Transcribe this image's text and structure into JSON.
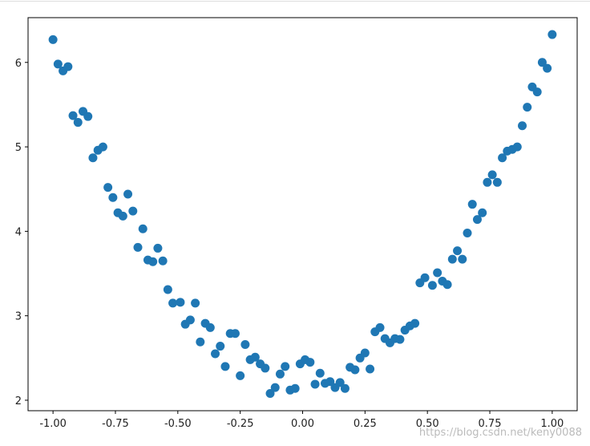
{
  "chart_data": {
    "type": "scatter",
    "x": [
      -1,
      -0.98,
      -0.96,
      -0.94,
      -0.92,
      -0.9,
      -0.88,
      -0.86,
      -0.84,
      -0.82,
      -0.8,
      -0.78,
      -0.76,
      -0.74,
      -0.72,
      -0.7,
      -0.68,
      -0.66,
      -0.64,
      -0.62,
      -0.6,
      -0.58,
      -0.56,
      -0.54,
      -0.52,
      -0.49,
      -0.47,
      -0.45,
      -0.43,
      -0.41,
      -0.39,
      -0.37,
      -0.35,
      -0.33,
      -0.31,
      -0.29,
      -0.27,
      -0.25,
      -0.23,
      -0.21,
      -0.19,
      -0.17,
      -0.15,
      -0.13,
      -0.11,
      -0.09,
      -0.07,
      -0.05,
      -0.03,
      -0.01,
      0.01,
      0.03,
      0.05,
      0.07,
      0.09,
      0.11,
      0.13,
      0.15,
      0.17,
      0.19,
      0.21,
      0.23,
      0.25,
      0.27,
      0.29,
      0.31,
      0.33,
      0.35,
      0.37,
      0.39,
      0.41,
      0.43,
      0.45,
      0.47,
      0.49,
      0.52,
      0.54,
      0.56,
      0.58,
      0.6,
      0.62,
      0.64,
      0.66,
      0.68,
      0.7,
      0.72,
      0.74,
      0.76,
      0.78,
      0.8,
      0.82,
      0.84,
      0.86,
      0.88,
      0.9,
      0.92,
      0.94,
      0.96,
      0.98,
      1
    ],
    "values": [
      6.27,
      5.98,
      5.9,
      5.95,
      5.37,
      5.29,
      5.42,
      5.36,
      4.87,
      4.96,
      5.0,
      4.52,
      4.4,
      4.22,
      4.18,
      4.44,
      4.24,
      3.81,
      4.03,
      3.66,
      3.64,
      3.8,
      3.65,
      3.31,
      3.15,
      3.16,
      2.9,
      2.95,
      3.15,
      2.69,
      2.91,
      2.86,
      2.55,
      2.64,
      2.4,
      2.79,
      2.79,
      2.29,
      2.66,
      2.48,
      2.51,
      2.43,
      2.38,
      2.08,
      2.15,
      2.31,
      2.4,
      2.12,
      2.14,
      2.43,
      2.48,
      2.45,
      2.19,
      2.32,
      2.2,
      2.22,
      2.15,
      2.21,
      2.14,
      2.39,
      2.36,
      2.5,
      2.56,
      2.37,
      2.81,
      2.86,
      2.73,
      2.68,
      2.73,
      2.72,
      2.83,
      2.88,
      2.91,
      3.39,
      3.45,
      3.36,
      3.51,
      3.41,
      3.37,
      3.67,
      3.77,
      3.67,
      3.98,
      4.32,
      4.14,
      4.22,
      4.58,
      4.67,
      4.58,
      4.87,
      4.95,
      4.97,
      5.0,
      5.25,
      5.47,
      5.71,
      5.65,
      6.0,
      5.93,
      6.33
    ],
    "color": "#1f77b4",
    "xlim": [
      -1.1,
      1.1
    ],
    "ylim": [
      1.876,
      6.53
    ],
    "xticks": [
      {
        "value": -1,
        "label": "-1.00"
      },
      {
        "value": -0.75,
        "label": "-0.75"
      },
      {
        "value": -0.5,
        "label": "-0.50"
      },
      {
        "value": -0.25,
        "label": "-0.25"
      },
      {
        "value": 0,
        "label": "0.00"
      },
      {
        "value": 0.25,
        "label": "0.25"
      },
      {
        "value": 0.5,
        "label": "0.50"
      },
      {
        "value": 0.75,
        "label": "0.75"
      },
      {
        "value": 1,
        "label": "1.00"
      }
    ],
    "yticks": [
      2,
      3,
      4,
      5,
      6
    ],
    "grid": false,
    "watermark": "https://blog.csdn.net/keny0088"
  }
}
